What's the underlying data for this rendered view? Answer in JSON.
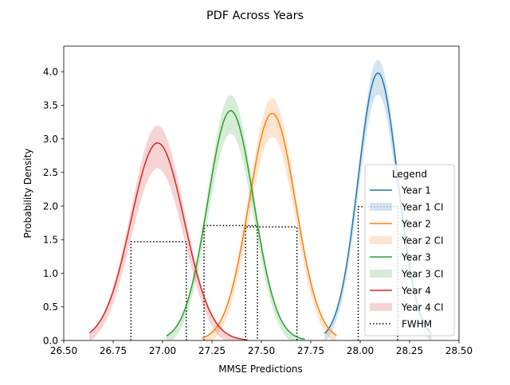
{
  "chart_data": {
    "type": "line",
    "title": "PDF Across Years",
    "xlabel": "MMSE Predictions",
    "ylabel": "Probability Density",
    "xlim": [
      26.5,
      28.5
    ],
    "ylim": [
      0,
      4.38
    ],
    "xticks": [
      26.5,
      26.75,
      27.0,
      27.25,
      27.5,
      27.75,
      28.0,
      28.25,
      28.5
    ],
    "xtick_labels": [
      "26.50",
      "26.75",
      "27.00",
      "27.25",
      "27.50",
      "27.75",
      "28.00",
      "28.25",
      "28.50"
    ],
    "yticks": [
      0,
      0.5,
      1.0,
      1.5,
      2.0,
      2.5,
      3.0,
      3.5,
      4.0
    ],
    "ytick_labels": [
      "0.0",
      "0.5",
      "1.0",
      "1.5",
      "2.0",
      "2.5",
      "3.0",
      "3.5",
      "4.0"
    ],
    "grid": false,
    "legend_title": "Legend",
    "legend_position": "center-right",
    "series": [
      {
        "name": "Year 1",
        "color": "#1f77b4",
        "mean": 28.09,
        "sigma": 0.1,
        "peak": 3.98,
        "ci_low": 3.78,
        "ci_high": 4.18,
        "x_range": [
          27.82,
          28.36
        ],
        "fwhm": [
          27.99,
          28.19
        ]
      },
      {
        "name": "Year 2",
        "color": "#ff7f0e",
        "mean": 27.555,
        "sigma": 0.118,
        "peak": 3.38,
        "ci_low": 3.15,
        "ci_high": 3.61,
        "x_range": [
          27.2,
          27.88
        ],
        "fwhm": [
          27.42,
          27.68
        ]
      },
      {
        "name": "Year 3",
        "color": "#2ca02c",
        "mean": 27.345,
        "sigma": 0.116,
        "peak": 3.42,
        "ci_low": 3.2,
        "ci_high": 3.65,
        "x_range": [
          27.02,
          27.72
        ],
        "fwhm": [
          27.21,
          27.48
        ]
      },
      {
        "name": "Year 4",
        "color": "#d62728",
        "mean": 26.975,
        "sigma": 0.135,
        "peak": 2.94,
        "ci_low": 2.68,
        "ci_high": 3.2,
        "x_range": [
          26.63,
          27.43
        ],
        "fwhm": [
          26.84,
          27.12
        ]
      }
    ],
    "legend_entries": [
      "Year 1",
      "Year 1 CI",
      "Year 2",
      "Year 2 CI",
      "Year 3",
      "Year 3 CI",
      "Year 4",
      "Year 4 CI",
      "FWHM"
    ]
  },
  "colors": {
    "fwhm": "#000000",
    "axes": "#000000",
    "background": "#ffffff"
  }
}
